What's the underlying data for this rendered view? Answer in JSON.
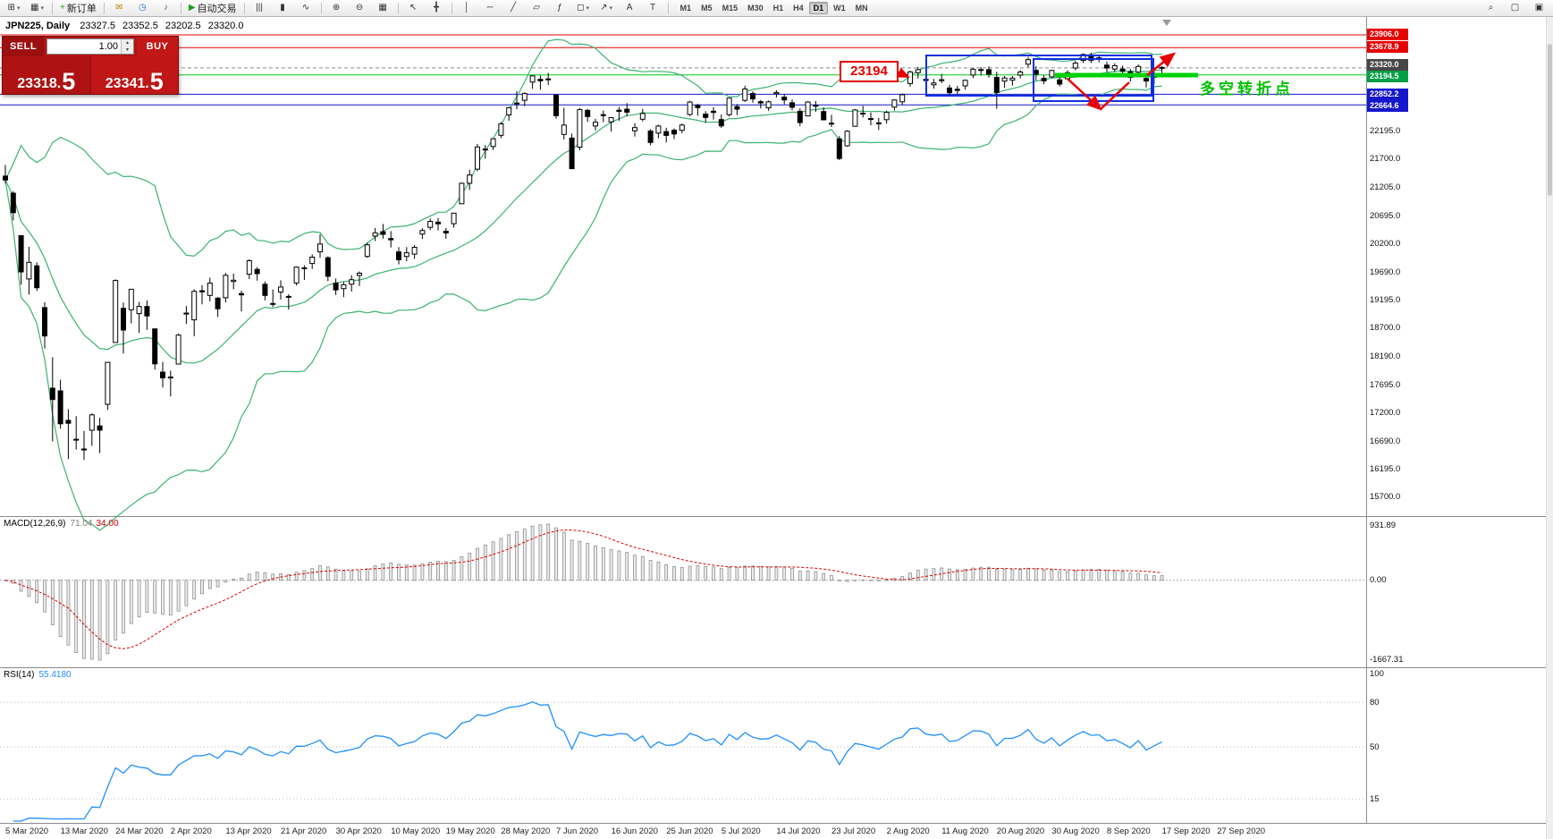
{
  "icons": {
    "caret_down": "▾",
    "caret_up": "▴"
  },
  "toolbar": {
    "buttons": [
      {
        "name": "new-chart",
        "glyph": "⊞",
        "caret": true
      },
      {
        "name": "chart-profiles",
        "glyph": "▦",
        "caret": true
      },
      {
        "sep": true
      },
      {
        "name": "new-order",
        "glyph": "+",
        "glyph_color": "#1d9f1d",
        "label": "新订单"
      },
      {
        "sep": true
      },
      {
        "name": "market-watch",
        "glyph": "✉",
        "glyph_color": "#b8860b"
      },
      {
        "name": "data-window",
        "glyph": "◷",
        "glyph_color": "#1f6fbf"
      },
      {
        "name": "sound-alerts",
        "glyph": "♪",
        "glyph_color": "#666666"
      },
      {
        "sep": true
      },
      {
        "name": "auto-trading",
        "glyph": "▶",
        "glyph_color": "#1d9f1d",
        "label": "自动交易"
      },
      {
        "sep": true
      },
      {
        "name": "bar-chart-mode",
        "glyph": "|||"
      },
      {
        "name": "candlestick-mode",
        "glyph": "▮"
      },
      {
        "name": "line-chart-mode",
        "glyph": "∿"
      },
      {
        "sep": true
      },
      {
        "name": "zoom-in",
        "glyph": "⊕"
      },
      {
        "name": "zoom-out",
        "glyph": "⊖"
      },
      {
        "name": "tile-windows",
        "glyph": "▦"
      },
      {
        "sep": true
      },
      {
        "name": "cursor",
        "glyph": "↖"
      },
      {
        "name": "crosshair",
        "glyph": "╋"
      },
      {
        "sep": true
      },
      {
        "name": "vertical-line",
        "glyph": "│"
      },
      {
        "name": "horizontal-line",
        "glyph": "─"
      },
      {
        "name": "trendline",
        "glyph": "╱"
      },
      {
        "name": "equidistant-channel",
        "glyph": "▱"
      },
      {
        "name": "fibonacci-retracement",
        "glyph": "ƒ"
      },
      {
        "name": "shapes",
        "glyph": "◻",
        "caret": true
      },
      {
        "name": "arrows",
        "glyph": "↗",
        "caret": true
      },
      {
        "name": "text",
        "glyph": "A"
      },
      {
        "name": "text-label",
        "glyph": "T"
      },
      {
        "sep": true
      }
    ],
    "timeframes": [
      {
        "label": "M1"
      },
      {
        "label": "M5"
      },
      {
        "label": "M15"
      },
      {
        "label": "M30"
      },
      {
        "label": "H1"
      },
      {
        "label": "H4"
      },
      {
        "label": "D1",
        "active": true
      },
      {
        "label": "W1"
      },
      {
        "label": "MN"
      }
    ],
    "right_icons": [
      {
        "name": "search",
        "glyph": "⌕"
      },
      {
        "name": "new-window",
        "glyph": "▢"
      },
      {
        "name": "arrange-windows",
        "glyph": "▣"
      }
    ]
  },
  "chart_header": {
    "symbol": "JPN225, Daily",
    "open": "23327.5",
    "high": "23352.5",
    "low": "23202.5",
    "close": "23320.0"
  },
  "trade_panel": {
    "sell_label": "SELL",
    "buy_label": "BUY",
    "volume": "1.00",
    "sell_price_main": "23318.",
    "sell_price_big": "5",
    "buy_price_main": "23341.",
    "buy_price_big": "5"
  },
  "annotations": {
    "price_box_text": "23194",
    "turning_point_text": "多空转折点"
  },
  "macd_panel": {
    "name": "MACD(12,26,9)",
    "value_main": "71.04",
    "value_signal": "34.00",
    "axis_max": "931.89",
    "axis_zero": "0.00",
    "axis_min": "-1667.31"
  },
  "rsi_panel": {
    "name": "RSI(14)",
    "value": "55.4180",
    "axis_labels": [
      "100",
      "80",
      "50",
      "15"
    ],
    "levels": [
      80,
      50,
      15
    ]
  },
  "price_axis": {
    "gridline_labels": [
      "22195.0",
      "21700.0",
      "21205.0",
      "20695.0",
      "20200.0",
      "19690.0",
      "19195.0",
      "18700.0",
      "18190.0",
      "17695.0",
      "17200.0",
      "16690.0",
      "16195.0",
      "15700.0"
    ],
    "tags": [
      {
        "text": "23906.0",
        "bg": "#e60000"
      },
      {
        "text": "23678.9",
        "bg": "#e60000"
      },
      {
        "text": "23320.0",
        "bg": "#474747"
      },
      {
        "text": "23194.5",
        "bg": "#00a046"
      },
      {
        "text": "22852.2",
        "bg": "#1515cd"
      },
      {
        "text": "22664.6",
        "bg": "#1515cd"
      }
    ]
  },
  "time_axis": {
    "labels": [
      "5 Mar 2020",
      "13 Mar 2020",
      "24 Mar 2020",
      "2 Apr 2020",
      "13 Apr 2020",
      "21 Apr 2020",
      "30 Apr 2020",
      "10 May 2020",
      "19 May 2020",
      "28 May 2020",
      "7 Jun 2020",
      "16 Jun 2020",
      "25 Jun 2020",
      "5 Jul 2020",
      "14 Jul 2020",
      "23 Jul 2020",
      "2 Aug 2020",
      "11 Aug 2020",
      "20 Aug 2020",
      "30 Aug 2020",
      "8 Sep 2020",
      "17 Sep 2020",
      "27 Sep 2020"
    ]
  },
  "chart_data": {
    "type": "candlestick",
    "symbol": "JPN225",
    "timeframe": "Daily",
    "title": "JPN225, Daily 23327.5 23352.5 23202.5 23320.0",
    "ylim": [
      15430,
      24180
    ],
    "indicators": {
      "bollinger": {
        "period": 20,
        "deviation": 2,
        "color": "#3cb371"
      },
      "macd": {
        "fast": 12,
        "slow": 26,
        "signal": 9,
        "current_main": 71.04,
        "current_signal": 34.0,
        "axis_max": 931.89,
        "axis_min": -1667.31
      },
      "rsi": {
        "period": 14,
        "current": 55.418,
        "scale": [
          0,
          100
        ],
        "levels": [
          80,
          50,
          15
        ]
      }
    },
    "price_lines": [
      {
        "price": 23906.0,
        "color": "#e60000",
        "dash": false
      },
      {
        "price": 23678.9,
        "color": "#e60000",
        "dash": false
      },
      {
        "price": 23320.0,
        "color": "#8a8a8a",
        "dash": true
      },
      {
        "price": 23194.5,
        "color": "#00c814",
        "dash": false
      },
      {
        "price": 22852.2,
        "color": "#1515cd",
        "dash": false
      },
      {
        "price": 22664.6,
        "color": "#1515cd",
        "dash": false
      }
    ],
    "ohlc": [
      [
        21399,
        21597,
        21271,
        21329
      ],
      [
        21096,
        21130,
        20613,
        20750
      ],
      [
        20343,
        20347,
        19472,
        19699
      ],
      [
        19572,
        20144,
        19295,
        19867
      ],
      [
        19805,
        19867,
        19361,
        19416
      ],
      [
        19064,
        19159,
        18339,
        18560
      ],
      [
        17633,
        18184,
        16690,
        17431
      ],
      [
        17586,
        17785,
        16914,
        17002
      ],
      [
        17062,
        17260,
        16378,
        17011
      ],
      [
        16726,
        17136,
        16544,
        16727
      ],
      [
        16552,
        16876,
        16358,
        16553
      ],
      [
        16887,
        17187,
        16609,
        17160
      ],
      [
        16963,
        17108,
        16480,
        16888
      ],
      [
        17348,
        18092,
        17248,
        18092
      ],
      [
        18446,
        19564,
        18446,
        19546
      ],
      [
        19051,
        19154,
        18248,
        18665
      ],
      [
        19026,
        19389,
        18784,
        19389
      ],
      [
        18958,
        19164,
        18614,
        19085
      ],
      [
        19084,
        19189,
        18669,
        18917
      ],
      [
        18686,
        18686,
        17964,
        18065
      ],
      [
        17919,
        18097,
        17646,
        17818
      ],
      [
        17832,
        17945,
        17488,
        17820
      ],
      [
        18062,
        18603,
        18062,
        18576
      ],
      [
        18968,
        19091,
        18774,
        18950
      ],
      [
        18846,
        19389,
        18555,
        19353
      ],
      [
        19362,
        19465,
        19123,
        19345
      ],
      [
        19280,
        19595,
        19173,
        19499
      ],
      [
        19232,
        19251,
        18901,
        19043
      ],
      [
        19239,
        19680,
        19156,
        19638
      ],
      [
        19527,
        19667,
        19389,
        19550
      ],
      [
        19314,
        19362,
        18994,
        19290
      ],
      [
        19657,
        19922,
        19570,
        19897
      ],
      [
        19743,
        19784,
        19544,
        19669
      ],
      [
        19479,
        19529,
        19193,
        19280
      ],
      [
        19137,
        19385,
        19072,
        19138
      ],
      [
        19340,
        19549,
        19206,
        19429
      ],
      [
        19257,
        19304,
        19029,
        19262
      ],
      [
        19500,
        19794,
        19456,
        19783
      ],
      [
        19766,
        19816,
        19556,
        19771
      ],
      [
        19848,
        20010,
        19750,
        19960
      ],
      [
        20055,
        20365,
        19947,
        20194
      ],
      [
        19950,
        19975,
        19533,
        19619
      ],
      [
        19500,
        19580,
        19290,
        19380
      ],
      [
        19400,
        19520,
        19250,
        19470
      ],
      [
        19480,
        19640,
        19350,
        19560
      ],
      [
        19636,
        19705,
        19448,
        19675
      ],
      [
        19972,
        20216,
        19946,
        20179
      ],
      [
        20333,
        20477,
        20247,
        20391
      ],
      [
        20413,
        20549,
        20289,
        20366
      ],
      [
        20290,
        20422,
        20131,
        20267
      ],
      [
        20054,
        20138,
        19833,
        19915
      ],
      [
        19972,
        20138,
        19885,
        20037
      ],
      [
        20014,
        20176,
        19929,
        20134
      ],
      [
        20370,
        20473,
        20282,
        20433
      ],
      [
        20488,
        20646,
        20439,
        20595
      ],
      [
        20582,
        20657,
        20434,
        20552
      ],
      [
        20420,
        20478,
        20285,
        20388
      ],
      [
        20553,
        20746,
        20484,
        20741
      ],
      [
        20907,
        21284,
        20907,
        21271
      ],
      [
        21271,
        21511,
        21154,
        21419
      ],
      [
        21522,
        21970,
        21484,
        21916
      ],
      [
        21868,
        21950,
        21710,
        21878
      ],
      [
        21924,
        22073,
        21863,
        22062
      ],
      [
        22122,
        22362,
        22074,
        22326
      ],
      [
        22485,
        22628,
        22383,
        22614
      ],
      [
        22692,
        22907,
        22585,
        22696
      ],
      [
        22745,
        22888,
        22642,
        22864
      ],
      [
        23067,
        23185,
        22948,
        23178
      ],
      [
        23117,
        23186,
        22933,
        23091
      ],
      [
        23116,
        23232,
        23019,
        23125
      ],
      [
        22837,
        22843,
        22420,
        22472
      ],
      [
        22138,
        22611,
        22048,
        22305
      ],
      [
        22075,
        22153,
        21530,
        21531
      ],
      [
        21913,
        22605,
        21857,
        22582
      ],
      [
        22567,
        22594,
        22361,
        22456
      ],
      [
        22288,
        22417,
        22208,
        22355
      ],
      [
        22489,
        22562,
        22357,
        22479
      ],
      [
        22361,
        22444,
        22189,
        22437
      ],
      [
        22569,
        22624,
        22380,
        22549
      ],
      [
        22587,
        22695,
        22461,
        22534
      ],
      [
        22205,
        22337,
        22102,
        22260
      ],
      [
        22409,
        22591,
        22370,
        22512
      ],
      [
        22199,
        22232,
        21946,
        21995
      ],
      [
        22163,
        22312,
        22071,
        22288
      ],
      [
        22190,
        22257,
        21998,
        22122
      ],
      [
        22213,
        22245,
        22056,
        22146
      ],
      [
        22213,
        22331,
        22160,
        22306
      ],
      [
        22494,
        22736,
        22466,
        22714
      ],
      [
        22655,
        22681,
        22470,
        22615
      ],
      [
        22500,
        22552,
        22345,
        22439
      ],
      [
        22551,
        22621,
        22404,
        22529
      ],
      [
        22402,
        22494,
        22254,
        22291
      ],
      [
        22490,
        22792,
        22460,
        22785
      ],
      [
        22632,
        22679,
        22481,
        22587
      ],
      [
        22745,
        23003,
        22713,
        22946
      ],
      [
        22865,
        22904,
        22704,
        22770
      ],
      [
        22720,
        22748,
        22601,
        22697
      ],
      [
        22611,
        22740,
        22559,
        22718
      ],
      [
        22862,
        22923,
        22793,
        22884
      ],
      [
        22800,
        22857,
        22674,
        22751
      ],
      [
        22700,
        22760,
        22570,
        22620
      ],
      [
        22550,
        22600,
        22290,
        22350
      ],
      [
        22468,
        22730,
        22462,
        22715
      ],
      [
        22657,
        22733,
        22541,
        22657
      ],
      [
        22545,
        22622,
        22390,
        22397
      ],
      [
        22339,
        22486,
        22270,
        22339
      ],
      [
        22060,
        22110,
        21683,
        21710
      ],
      [
        21936,
        22215,
        21919,
        22195
      ],
      [
        22283,
        22589,
        22275,
        22573
      ],
      [
        22517,
        22646,
        22438,
        22514
      ],
      [
        22419,
        22528,
        22301,
        22418
      ],
      [
        22343,
        22430,
        22216,
        22330
      ],
      [
        22400,
        22560,
        22330,
        22530
      ],
      [
        22624,
        22762,
        22563,
        22750
      ],
      [
        22718,
        22862,
        22660,
        22843
      ],
      [
        23043,
        23272,
        22985,
        23249
      ],
      [
        23235,
        23338,
        23131,
        23289
      ],
      [
        23117,
        23189,
        23021,
        23096
      ],
      [
        23020,
        23123,
        22952,
        23051
      ],
      [
        23093,
        23213,
        23048,
        23111
      ],
      [
        22963,
        23019,
        22833,
        22880
      ],
      [
        22940,
        23003,
        22846,
        22920
      ],
      [
        23001,
        23115,
        22936,
        23100
      ],
      [
        23192,
        23322,
        23140,
        23296
      ],
      [
        23279,
        23334,
        23186,
        23290
      ],
      [
        23288,
        23345,
        23147,
        23208
      ],
      [
        23151,
        23250,
        22594,
        22882
      ],
      [
        23085,
        23176,
        22965,
        23140
      ],
      [
        23103,
        23176,
        23006,
        23138
      ],
      [
        23192,
        23280,
        23133,
        23247
      ],
      [
        23386,
        23516,
        23334,
        23466
      ],
      [
        23275,
        23351,
        23100,
        23205
      ],
      [
        23134,
        23190,
        23029,
        23090
      ],
      [
        23160,
        23288,
        23139,
        23274
      ],
      [
        23107,
        23165,
        22992,
        23033
      ],
      [
        23128,
        23277,
        23112,
        23235
      ],
      [
        23318,
        23442,
        23275,
        23406
      ],
      [
        23453,
        23577,
        23406,
        23559
      ],
      [
        23529,
        23588,
        23406,
        23455
      ],
      [
        23500,
        23557,
        23422,
        23476
      ],
      [
        23370,
        23432,
        23244,
        23319
      ],
      [
        23300,
        23402,
        23246,
        23360
      ],
      [
        23300,
        23360,
        23200,
        23260
      ],
      [
        23250,
        23300,
        23080,
        23150
      ],
      [
        23246,
        23380,
        23173,
        23346
      ],
      [
        23133,
        23179,
        22972,
        23087
      ],
      [
        23149,
        23265,
        23032,
        23205
      ],
      [
        23327.5,
        23352.5,
        23202.5,
        23320.0
      ]
    ]
  }
}
